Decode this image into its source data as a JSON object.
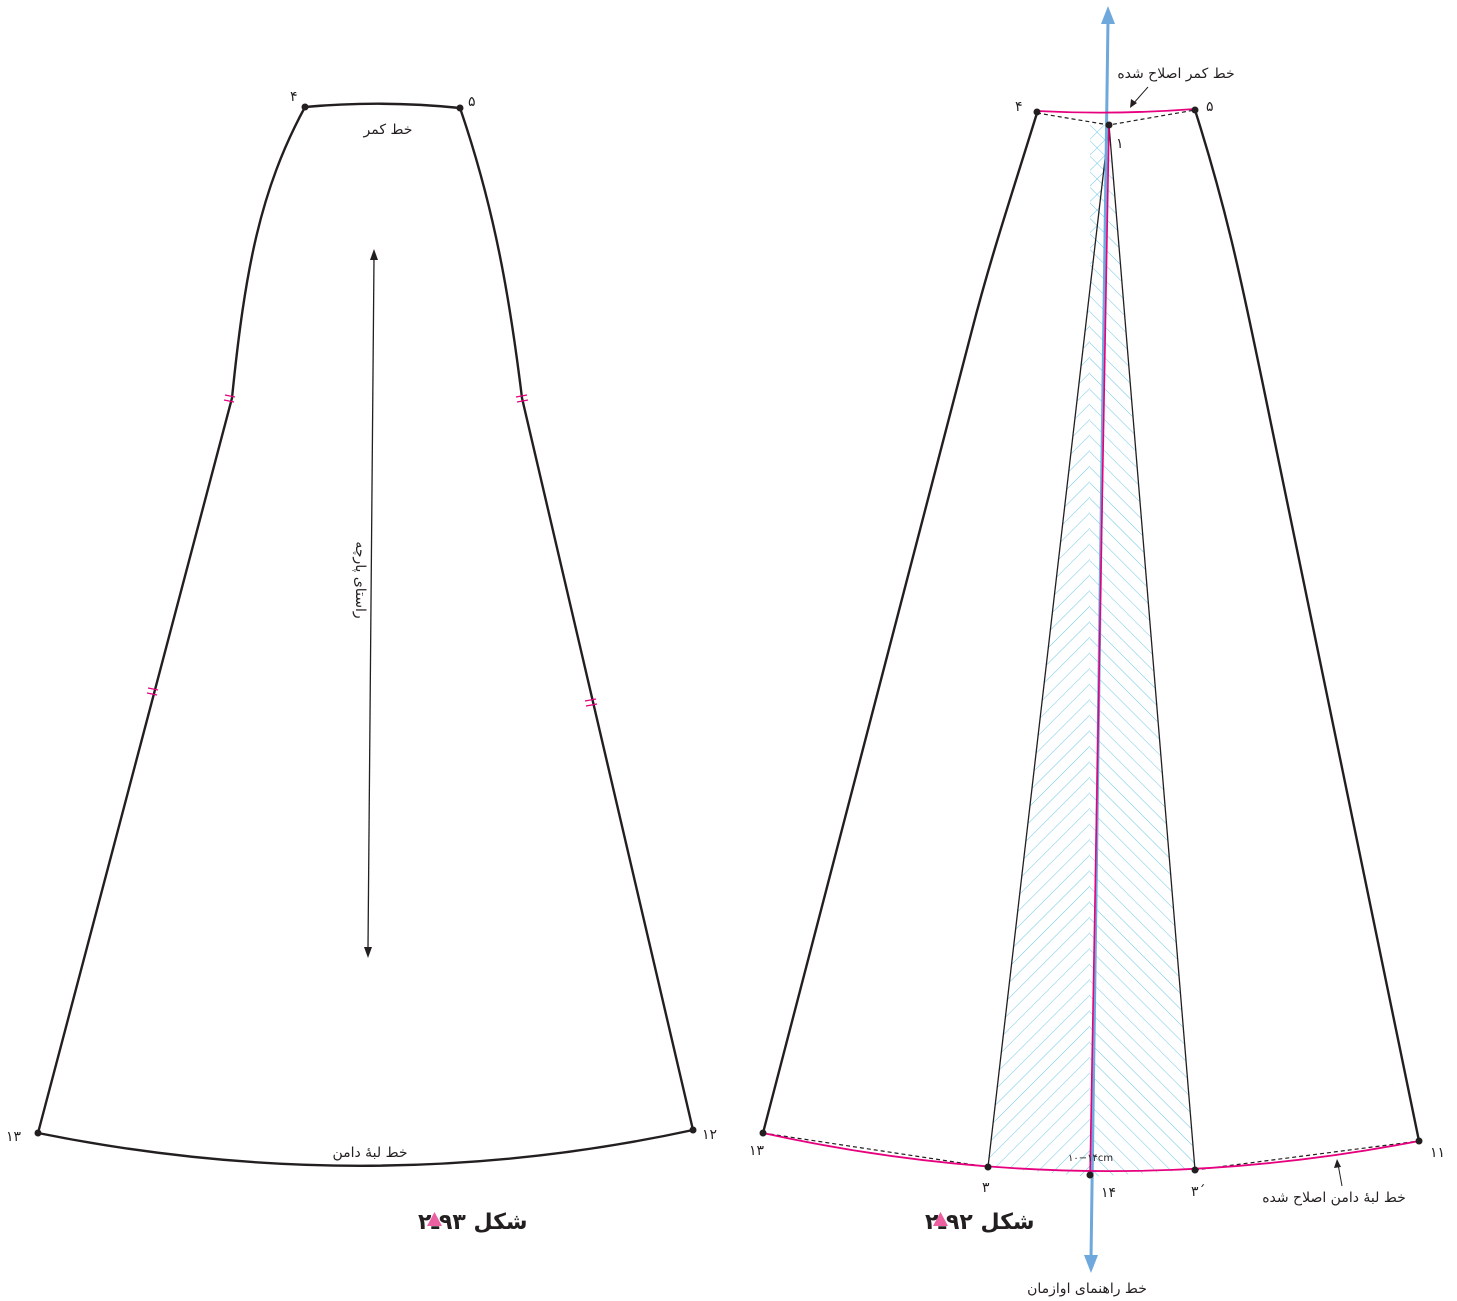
{
  "figure_left": {
    "points": {
      "p4": "۴",
      "p5": "۵",
      "p12": "۱۲",
      "p13": "۱۳"
    },
    "waist_label": "خط کمر",
    "hem_label": "خط لبهٔ دامن",
    "grain_label": "راستای پارچه",
    "caption": "شکل ۹۳ـ۲"
  },
  "figure_right": {
    "points": {
      "p1": "۱",
      "p3": "۳",
      "p3prime": "۳´",
      "p4": "۴",
      "p5": "۵",
      "p11": "۱۱",
      "p13": "۱۳",
      "p14": "۱۴"
    },
    "corrected_waist_label": "خط کمر اصلاح شده",
    "corrected_hem_label": "خط لبهٔ دامن اصلاح شده",
    "flare_measure": "۱۰−۱۴cm",
    "guide_line_label": "خط راهنمای اوازمان",
    "caption": "شکل ۹۲ـ۲"
  },
  "colors": {
    "outline": "#231f20",
    "magenta": "#e6007e",
    "blue_arrow": "#6fa8dc",
    "hatch": "#6ec6e8",
    "caption_marker": "#ec5fa0"
  }
}
